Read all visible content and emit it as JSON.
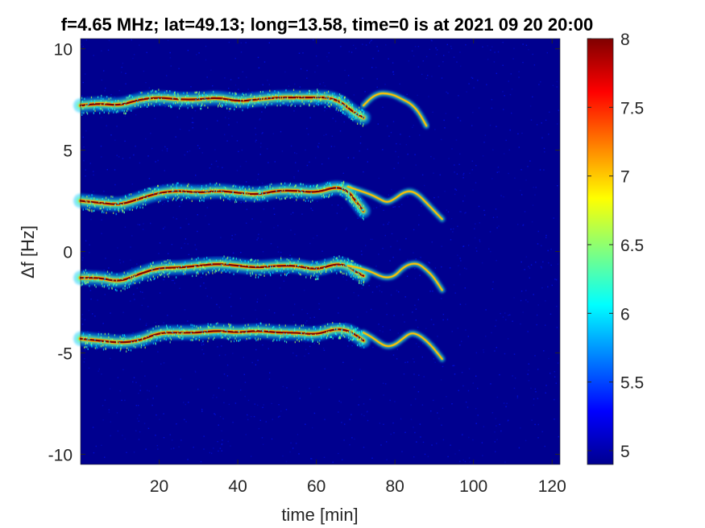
{
  "chart_data": {
    "type": "heatmap",
    "title": "f=4.65 MHz;  lat=49.13; long=13.58, time=0 is at 2021 09 20 20:00",
    "xlabel": "time [min]",
    "ylabel": "Δf [Hz]",
    "xlim": [
      0,
      122
    ],
    "ylim": [
      -10.5,
      10.5
    ],
    "xticks": [
      20,
      40,
      60,
      80,
      100,
      120
    ],
    "yticks": [
      10,
      5,
      0,
      -5,
      -10
    ],
    "colorbar": {
      "colormap": "jet",
      "clim": [
        4.9,
        8
      ],
      "ticks": [
        8,
        7.5,
        7,
        6.5,
        6,
        5.5,
        5
      ]
    },
    "background_level": 5.0,
    "traces": [
      {
        "t": [
          0,
          5,
          10,
          15,
          20,
          25,
          30,
          35,
          40,
          45,
          50,
          55,
          60,
          63,
          66,
          68,
          70,
          72
        ],
        "df": [
          7.2,
          7.3,
          7.2,
          7.5,
          7.6,
          7.5,
          7.5,
          7.6,
          7.4,
          7.5,
          7.6,
          7.6,
          7.6,
          7.6,
          7.4,
          7.1,
          6.8,
          6.6
        ],
        "peak": 8.0
      },
      {
        "t": [
          72,
          74,
          76,
          78,
          80,
          82,
          84,
          86,
          88
        ],
        "df": [
          7.2,
          7.6,
          7.8,
          7.8,
          7.7,
          7.5,
          7.3,
          6.9,
          6.2
        ],
        "peak": 7.0
      },
      {
        "t": [
          0,
          5,
          10,
          15,
          20,
          25,
          30,
          35,
          40,
          45,
          50,
          55,
          60,
          65,
          68,
          70,
          72
        ],
        "df": [
          2.5,
          2.4,
          2.3,
          2.6,
          2.9,
          3.0,
          2.9,
          3.0,
          2.9,
          2.8,
          3.0,
          3.0,
          2.9,
          3.2,
          3.0,
          2.5,
          2.0
        ],
        "peak": 8.0
      },
      {
        "t": [
          68,
          71,
          74,
          76,
          78,
          80,
          82,
          84,
          86,
          88,
          90,
          92
        ],
        "df": [
          3.2,
          3.0,
          2.8,
          2.6,
          2.4,
          2.6,
          2.9,
          3.0,
          2.8,
          2.4,
          2.0,
          1.6
        ],
        "peak": 7.0
      },
      {
        "t": [
          0,
          5,
          10,
          15,
          20,
          25,
          30,
          35,
          40,
          45,
          50,
          55,
          60,
          65,
          68,
          70,
          72
        ],
        "df": [
          -1.3,
          -1.3,
          -1.5,
          -1.1,
          -0.8,
          -0.8,
          -0.7,
          -0.6,
          -0.7,
          -0.8,
          -0.7,
          -0.7,
          -0.9,
          -0.6,
          -0.7,
          -1.0,
          -1.2
        ],
        "peak": 8.0
      },
      {
        "t": [
          68,
          71,
          74,
          76,
          78,
          80,
          82,
          84,
          86,
          88,
          90,
          92
        ],
        "df": [
          -0.7,
          -0.8,
          -1.0,
          -1.2,
          -1.3,
          -1.2,
          -0.8,
          -0.6,
          -0.6,
          -0.9,
          -1.3,
          -1.9
        ],
        "peak": 7.0
      },
      {
        "t": [
          0,
          5,
          10,
          15,
          20,
          25,
          30,
          35,
          40,
          45,
          50,
          55,
          60,
          65,
          68,
          70,
          72
        ],
        "df": [
          -4.3,
          -4.4,
          -4.5,
          -4.4,
          -4.0,
          -4.0,
          -4.0,
          -3.9,
          -4.0,
          -3.9,
          -4.0,
          -4.0,
          -4.1,
          -3.8,
          -3.9,
          -4.1,
          -4.4
        ],
        "peak": 8.0
      },
      {
        "t": [
          72,
          74,
          76,
          78,
          80,
          82,
          84,
          86,
          88,
          90,
          92
        ],
        "df": [
          -4.0,
          -4.2,
          -4.5,
          -4.7,
          -4.6,
          -4.3,
          -4.0,
          -4.1,
          -4.4,
          -4.8,
          -5.3
        ],
        "peak": 7.0
      }
    ]
  }
}
